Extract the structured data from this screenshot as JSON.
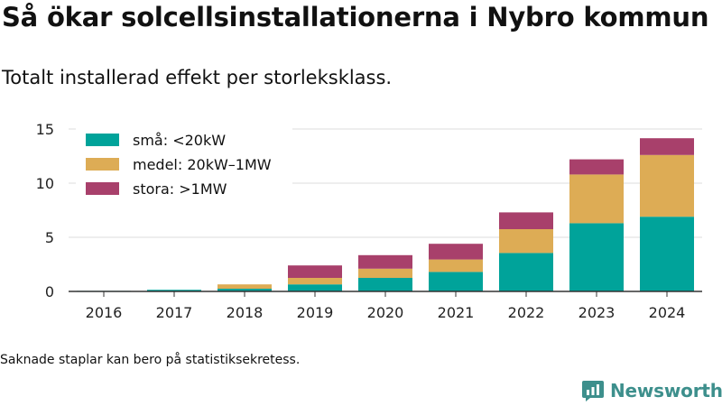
{
  "title": "Så ökar solcellsinstallationerna i Nybro kommun",
  "subtitle": "Totalt installerad effekt per storleksklass.",
  "footnote": "Saknade staplar kan bero på statistiksekretess.",
  "brand": {
    "name": "Newsworthy",
    "logo_icon": "newsworthy-logo-icon"
  },
  "colors": {
    "small": "#00a39a",
    "medium": "#ddac55",
    "large": "#a8406b",
    "grid": "#dddddd",
    "axis": "#333333"
  },
  "chart_data": {
    "type": "bar",
    "stacked": true,
    "categories": [
      "2016",
      "2017",
      "2018",
      "2019",
      "2020",
      "2021",
      "2022",
      "2023",
      "2024"
    ],
    "series": [
      {
        "name": "små: <20kW",
        "values": [
          0.05,
          0.15,
          0.25,
          0.65,
          1.25,
          1.8,
          3.55,
          6.3,
          6.9
        ]
      },
      {
        "name": "medel: 20kW–1MW",
        "values": [
          0,
          0,
          0.4,
          0.6,
          0.85,
          1.15,
          2.2,
          4.5,
          5.7
        ]
      },
      {
        "name": "stora: >1MW",
        "values": [
          0,
          0,
          0,
          1.15,
          1.25,
          1.45,
          1.55,
          1.4,
          1.55
        ]
      }
    ],
    "ylim": [
      0,
      15
    ],
    "yticks": [
      0,
      5,
      10,
      15
    ],
    "grid": true,
    "legend_position": "top-left",
    "xlabel": "",
    "ylabel": ""
  }
}
